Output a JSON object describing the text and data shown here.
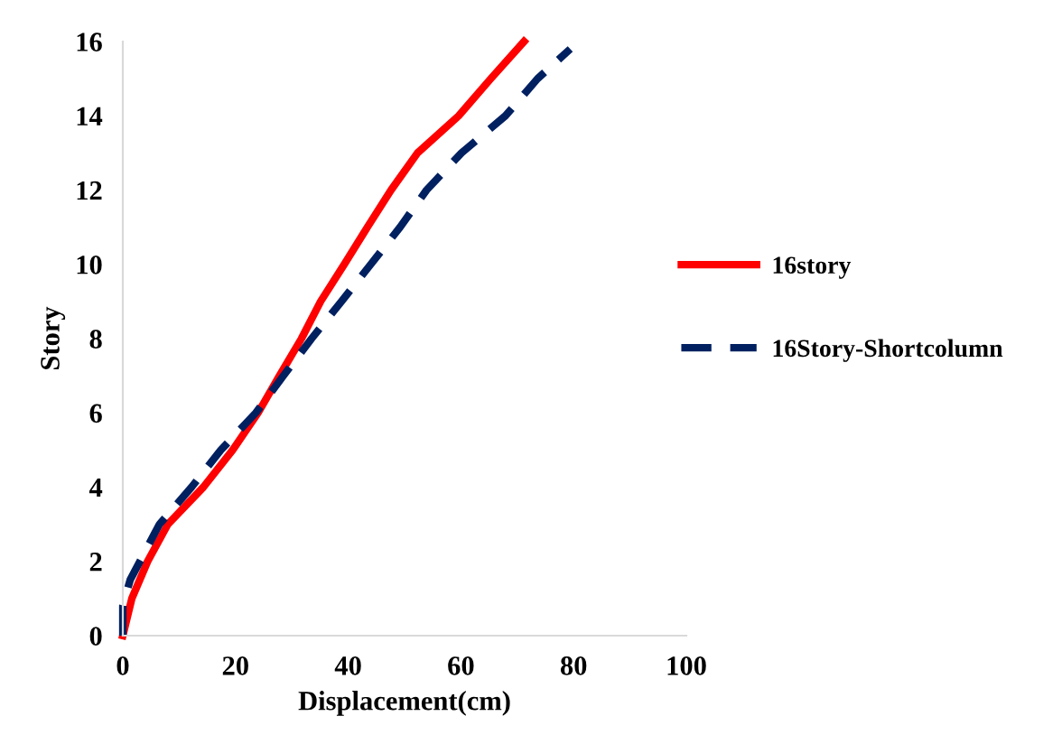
{
  "chart_data": {
    "type": "line",
    "xlabel": "Displacement(cm)",
    "ylabel": "Story",
    "xlim": [
      0,
      100
    ],
    "xticks": [
      0,
      20,
      40,
      60,
      80,
      100
    ],
    "ylim": [
      0,
      16
    ],
    "yticks": [
      0,
      2,
      4,
      6,
      8,
      10,
      12,
      14,
      16
    ],
    "grid": false,
    "legend": "right",
    "marker": "none",
    "series": [
      {
        "name": "16story",
        "color": "#ff0000",
        "line_style": "solid",
        "x": [
          0,
          1.6,
          4.4,
          8,
          14.3,
          19.5,
          24,
          27.8,
          31.7,
          35.1,
          39.3,
          43.4,
          47.6,
          52.3,
          59.6,
          65.3,
          71.2
        ],
        "values": [
          0,
          1,
          2,
          3,
          4,
          5,
          6,
          7,
          8,
          9,
          10,
          11,
          12,
          13,
          14,
          15,
          16
        ]
      },
      {
        "name": "16Story-Shortcolumn",
        "color": "#002060",
        "line_style": "dashed",
        "x": [
          0,
          0,
          1.3,
          6.5,
          12.2,
          17.4,
          23.6,
          28.5,
          33.5,
          38.8,
          44,
          49.2,
          53.9,
          60.1,
          67.9,
          73.6,
          79.4
        ],
        "values": [
          0,
          0.8,
          1.5,
          3,
          4,
          5,
          6,
          7,
          8,
          9,
          10,
          11,
          12,
          13,
          14,
          15,
          15.8
        ]
      }
    ]
  }
}
